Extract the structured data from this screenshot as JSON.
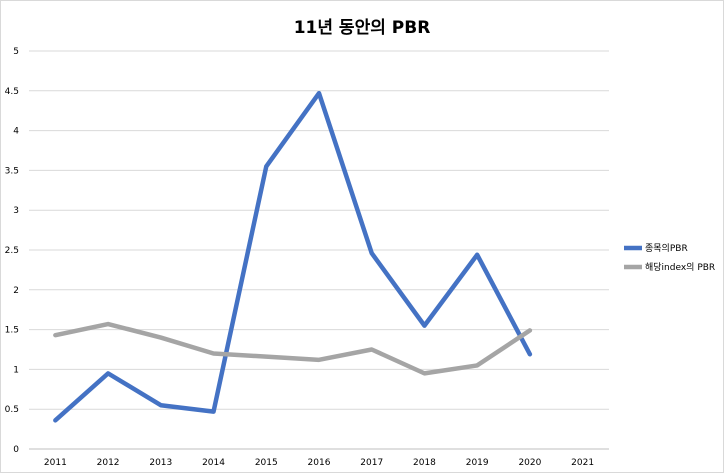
{
  "chart_data": {
    "type": "line",
    "title": "11년 동안의 PBR",
    "categories": [
      "2011",
      "2012",
      "2013",
      "2014",
      "2015",
      "2016",
      "2017",
      "2018",
      "2019",
      "2020",
      "2021"
    ],
    "ylim": [
      0,
      5
    ],
    "yticks": [
      "0",
      "0.5",
      "1",
      "1.5",
      "2",
      "2.5",
      "3",
      "3.5",
      "4",
      "4.5",
      "5"
    ],
    "grid": true,
    "legend_position": "right",
    "series": [
      {
        "name": "종목의PBR",
        "color": "#4472C4",
        "values": [
          0.36,
          0.95,
          0.55,
          0.47,
          3.55,
          4.47,
          2.46,
          1.55,
          2.44,
          1.19,
          null
        ]
      },
      {
        "name": "해당index의 PBR",
        "color": "#A5A5A5",
        "values": [
          1.43,
          1.57,
          1.4,
          1.2,
          1.16,
          1.12,
          1.25,
          0.95,
          1.05,
          1.49,
          null
        ]
      }
    ]
  }
}
